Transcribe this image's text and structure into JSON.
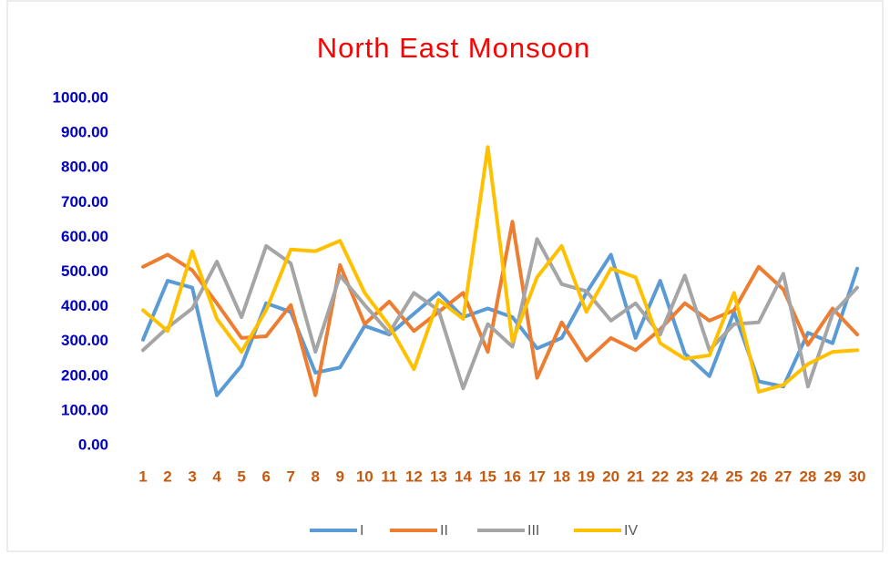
{
  "chart_data": {
    "type": "line",
    "title": "North East Monsoon",
    "categories": [
      "1",
      "2",
      "3",
      "4",
      "5",
      "6",
      "7",
      "8",
      "9",
      "10",
      "11",
      "12",
      "13",
      "14",
      "15",
      "16",
      "17",
      "18",
      "19",
      "20",
      "21",
      "22",
      "23",
      "24",
      "25",
      "26",
      "27",
      "28",
      "29",
      "30"
    ],
    "series": [
      {
        "name": "I",
        "color": "#5b9bd5",
        "values": [
          305,
          475,
          455,
          145,
          230,
          410,
          385,
          210,
          225,
          345,
          320,
          380,
          440,
          370,
          395,
          370,
          280,
          310,
          440,
          550,
          310,
          475,
          265,
          200,
          385,
          185,
          170,
          325,
          295,
          510
        ]
      },
      {
        "name": "II",
        "color": "#ed7d31",
        "values": [
          515,
          550,
          505,
          410,
          310,
          315,
          405,
          145,
          520,
          350,
          415,
          330,
          385,
          440,
          270,
          645,
          195,
          355,
          245,
          310,
          275,
          335,
          410,
          360,
          390,
          515,
          450,
          290,
          395,
          320
        ]
      },
      {
        "name": "III",
        "color": "#a5a5a5",
        "values": [
          275,
          340,
          395,
          530,
          370,
          575,
          525,
          270,
          490,
          405,
          325,
          440,
          390,
          165,
          350,
          285,
          595,
          465,
          445,
          360,
          410,
          320,
          490,
          275,
          350,
          355,
          495,
          170,
          380,
          455
        ]
      },
      {
        "name": "IV",
        "color": "#ffc000",
        "values": [
          390,
          330,
          560,
          365,
          270,
          390,
          565,
          560,
          590,
          440,
          345,
          220,
          420,
          365,
          860,
          300,
          485,
          575,
          385,
          510,
          485,
          295,
          250,
          260,
          440,
          155,
          175,
          235,
          270,
          275
        ]
      }
    ],
    "ylim": [
      0,
      1000
    ],
    "yticks": [
      {
        "value": 0,
        "label": "0.00"
      },
      {
        "value": 100,
        "label": "100.00"
      },
      {
        "value": 200,
        "label": "200.00"
      },
      {
        "value": 300,
        "label": "300.00"
      },
      {
        "value": 400,
        "label": "400.00"
      },
      {
        "value": 500,
        "label": "500.00"
      },
      {
        "value": 600,
        "label": "600.00"
      },
      {
        "value": 700,
        "label": "700.00"
      },
      {
        "value": 800,
        "label": "800.00"
      },
      {
        "value": 900,
        "label": "900.00"
      },
      {
        "value": 1000,
        "label": "1000.00"
      }
    ],
    "grid": false,
    "legend": "bottom"
  }
}
